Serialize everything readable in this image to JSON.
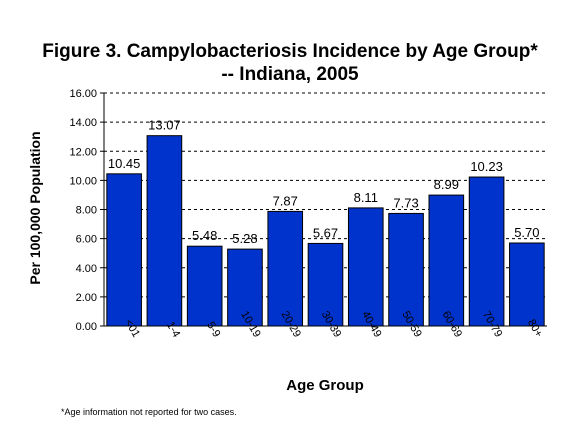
{
  "chart_data": {
    "type": "bar",
    "title_line1": "Figure 3.  Campylobacteriosis Incidence by Age Group*",
    "title_line2": "-- Indiana, 2005",
    "xlabel": "Age Group",
    "ylabel": "Per 100,000 Population",
    "ylim": [
      0,
      16
    ],
    "yticks": [
      "0.00",
      "2.00",
      "4.00",
      "6.00",
      "8.00",
      "10.00",
      "12.00",
      "14.00",
      "16.00"
    ],
    "grid": true,
    "grid_style": "dashed-horizontal",
    "categories": [
      "<01",
      "1-4",
      "5-9",
      "10-19",
      "20-29",
      "30-39",
      "40-49",
      "50-59",
      "60-69",
      "70-79",
      "80+"
    ],
    "values": [
      10.45,
      13.07,
      5.48,
      5.28,
      7.87,
      5.67,
      8.11,
      7.73,
      8.99,
      10.23,
      5.7
    ],
    "value_labels": [
      "10.45",
      "13.07",
      "5.48",
      "5.28",
      "7.87",
      "5.67",
      "8.11",
      "7.73",
      "8.99",
      "10.23",
      "5.70"
    ],
    "bar_color": "#0033cc",
    "footnote": "*Age information not reported for two cases."
  }
}
